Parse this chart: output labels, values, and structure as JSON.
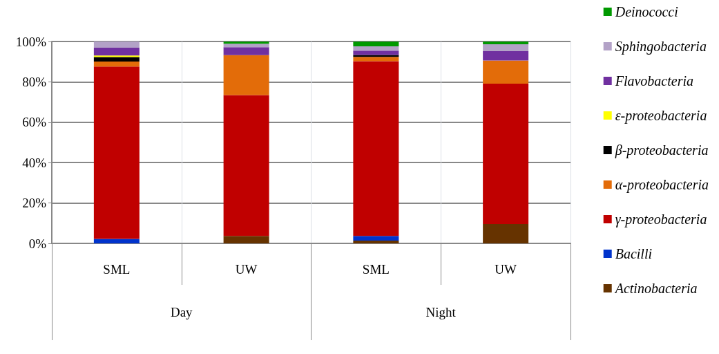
{
  "chart_data": {
    "type": "bar",
    "stacked": true,
    "categories": [
      "SML",
      "UW",
      "SML",
      "UW"
    ],
    "annotations": [
      "Day",
      "Night"
    ],
    "series": [
      {
        "name": "Actinobacteria",
        "color": "#663300",
        "values": [
          0,
          3.7,
          1.4,
          9.6
        ]
      },
      {
        "name": "Bacilli",
        "color": "#0033cc",
        "values": [
          2.2,
          0,
          2.3,
          0
        ]
      },
      {
        "name": "γ-proteobacteria",
        "color": "#c00000",
        "values": [
          85.4,
          69.8,
          86.5,
          69.5
        ]
      },
      {
        "name": "α-proteobacteria",
        "color": "#e36c09",
        "values": [
          2.5,
          19.7,
          2.2,
          11.5
        ]
      },
      {
        "name": "β-proteobacteria",
        "color": "#000000",
        "values": [
          2.2,
          0,
          0.9,
          0
        ]
      },
      {
        "name": "ε-proteobacteria",
        "color": "#ffff00",
        "values": [
          0.8,
          0,
          0,
          0
        ]
      },
      {
        "name": "Flavobacteria",
        "color": "#7030a0",
        "values": [
          3.8,
          4.0,
          2.2,
          4.6
        ]
      },
      {
        "name": "Sphingobacteria",
        "color": "#b3a2c7",
        "values": [
          3.1,
          1.7,
          2.1,
          3.4
        ]
      },
      {
        "name": "Deinococci",
        "color": "#009900",
        "values": [
          0,
          1.0,
          2.3,
          1.3
        ]
      }
    ],
    "ylim": [
      0,
      100
    ],
    "yticks": [
      {
        "value": 0,
        "label": "0%"
      },
      {
        "value": 20,
        "label": "20%"
      },
      {
        "value": 40,
        "label": "40%"
      },
      {
        "value": 60,
        "label": "60%"
      },
      {
        "value": 80,
        "label": "80%"
      },
      {
        "value": 100,
        "label": "100%"
      }
    ],
    "grid": true,
    "legend": "right"
  }
}
